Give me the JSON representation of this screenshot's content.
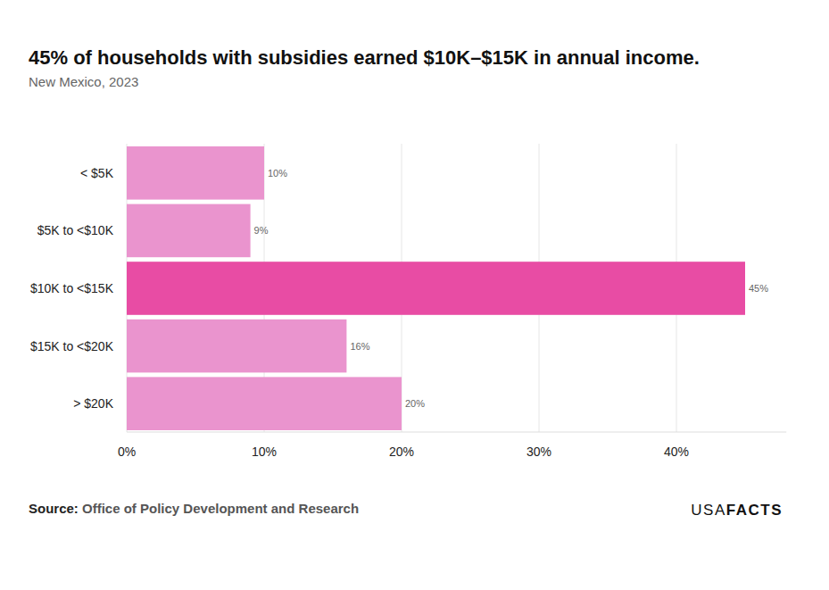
{
  "chart_data": {
    "type": "bar",
    "orientation": "horizontal",
    "title": "45% of households with subsidies earned $10K–$15K in annual income.",
    "subtitle": "New Mexico, 2023",
    "categories": [
      "< $5K",
      "$5K to <$10K",
      "$10K to <$15K",
      "$15K to <$20K",
      "> $20K"
    ],
    "values": [
      10,
      9,
      45,
      16,
      20
    ],
    "value_labels": [
      "10%",
      "9%",
      "45%",
      "16%",
      "20%"
    ],
    "colors": [
      "#ea94ce",
      "#ea94ce",
      "#e84ca4",
      "#ea94ce",
      "#ea94ce"
    ],
    "data_labels": true,
    "xlim": [
      0,
      48
    ],
    "xticks": [
      {
        "value": 0,
        "label": "0%"
      },
      {
        "value": 10,
        "label": "10%"
      },
      {
        "value": 20,
        "label": "20%"
      },
      {
        "value": 30,
        "label": "30%"
      },
      {
        "value": 40,
        "label": "40%"
      }
    ],
    "grid": true,
    "source_label": "Source:",
    "source": "Office of Policy Development and Research",
    "logo": [
      "USA",
      "FACTS"
    ]
  }
}
